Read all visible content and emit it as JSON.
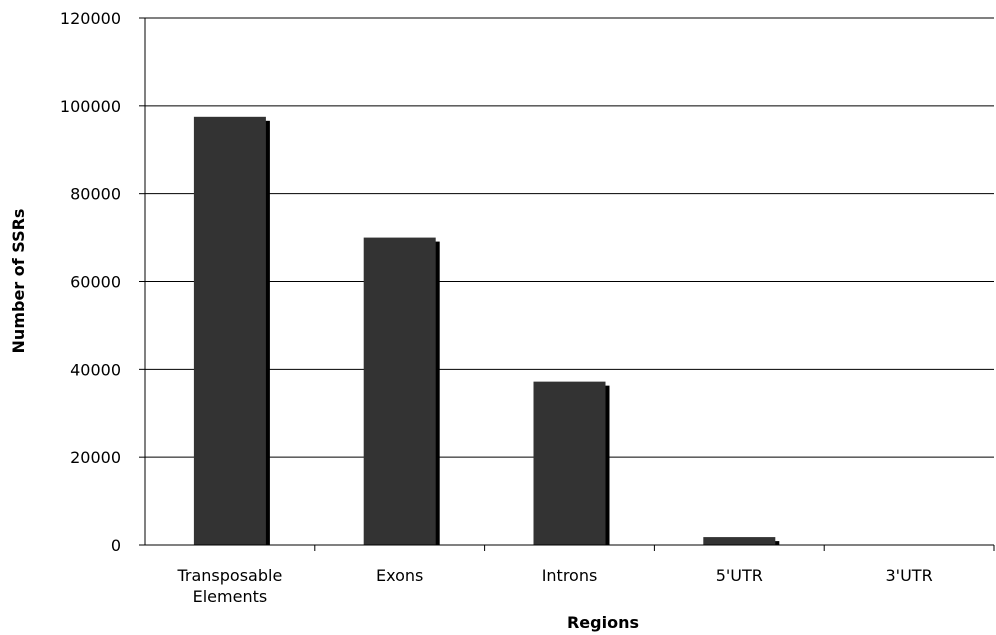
{
  "chart_data": {
    "type": "bar",
    "title": "",
    "xlabel": "Regions",
    "ylabel": "Number of SSRs",
    "categories": [
      [
        "Transposable",
        "Elements"
      ],
      [
        "Exons"
      ],
      [
        "Introns"
      ],
      [
        "5'UTR"
      ],
      [
        "3'UTR"
      ]
    ],
    "values": [
      97500,
      70000,
      37200,
      1800,
      0
    ],
    "ylim": [
      0,
      120000
    ],
    "yticks": [
      "0",
      "20000",
      "40000",
      "60000",
      "80000",
      "100000",
      "120000"
    ],
    "grid": true,
    "bar_color": "#333333",
    "shadow_color": "#000000"
  }
}
